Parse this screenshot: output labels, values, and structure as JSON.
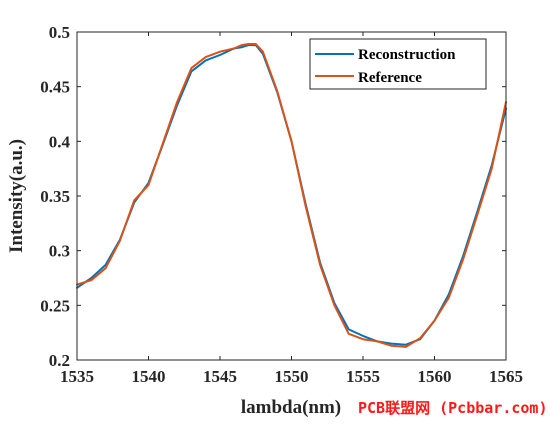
{
  "chart_data": {
    "type": "line",
    "title": "",
    "xlabel": "lambda(nm)",
    "ylabel": "Intensity(a.u.)",
    "xlim": [
      1535,
      1565
    ],
    "ylim": [
      0.2,
      0.5
    ],
    "xticks": [
      1535,
      1540,
      1545,
      1550,
      1555,
      1560,
      1565
    ],
    "xtick_labels": [
      "1535",
      "1540",
      "1545",
      "1550",
      "1555",
      "1560",
      "1565"
    ],
    "yticks": [
      0.2,
      0.25,
      0.3,
      0.35,
      0.4,
      0.45,
      0.5
    ],
    "ytick_labels": [
      "0.2",
      "0.25",
      "0.3",
      "0.35",
      "0.4",
      "0.45",
      "0.5"
    ],
    "grid": false,
    "legend_position": "top-right",
    "series": [
      {
        "name": "Reconstruction",
        "color": "#0072bd",
        "x": [
          1535,
          1536,
          1537,
          1538,
          1539,
          1540,
          1541,
          1542,
          1543,
          1544,
          1545,
          1546,
          1546.5,
          1547,
          1547.5,
          1548,
          1549,
          1550,
          1551,
          1552,
          1553,
          1554,
          1555,
          1556,
          1557,
          1558,
          1559,
          1560,
          1561,
          1562,
          1563,
          1564,
          1565
        ],
        "values": [
          0.266,
          0.275,
          0.287,
          0.31,
          0.344,
          0.362,
          0.397,
          0.433,
          0.464,
          0.474,
          0.479,
          0.485,
          0.486,
          0.488,
          0.488,
          0.48,
          0.445,
          0.4,
          0.342,
          0.289,
          0.252,
          0.228,
          0.222,
          0.217,
          0.215,
          0.214,
          0.219,
          0.236,
          0.26,
          0.295,
          0.336,
          0.378,
          0.43
        ]
      },
      {
        "name": "Reference",
        "color": "#d95319",
        "x": [
          1535,
          1536,
          1537,
          1538,
          1539,
          1540,
          1541,
          1542,
          1543,
          1544,
          1545,
          1546,
          1546.5,
          1547,
          1547.5,
          1548,
          1549,
          1550,
          1551,
          1552,
          1553,
          1554,
          1555,
          1556,
          1557,
          1558,
          1559,
          1560,
          1561,
          1562,
          1563,
          1564,
          1565
        ],
        "values": [
          0.269,
          0.273,
          0.284,
          0.309,
          0.346,
          0.36,
          0.398,
          0.436,
          0.467,
          0.477,
          0.482,
          0.485,
          0.488,
          0.489,
          0.489,
          0.482,
          0.446,
          0.4,
          0.34,
          0.287,
          0.25,
          0.224,
          0.219,
          0.217,
          0.213,
          0.212,
          0.22,
          0.236,
          0.257,
          0.292,
          0.333,
          0.375,
          0.436
        ]
      }
    ]
  },
  "watermark": "PCB联盟网 (Pcbbar.com)"
}
